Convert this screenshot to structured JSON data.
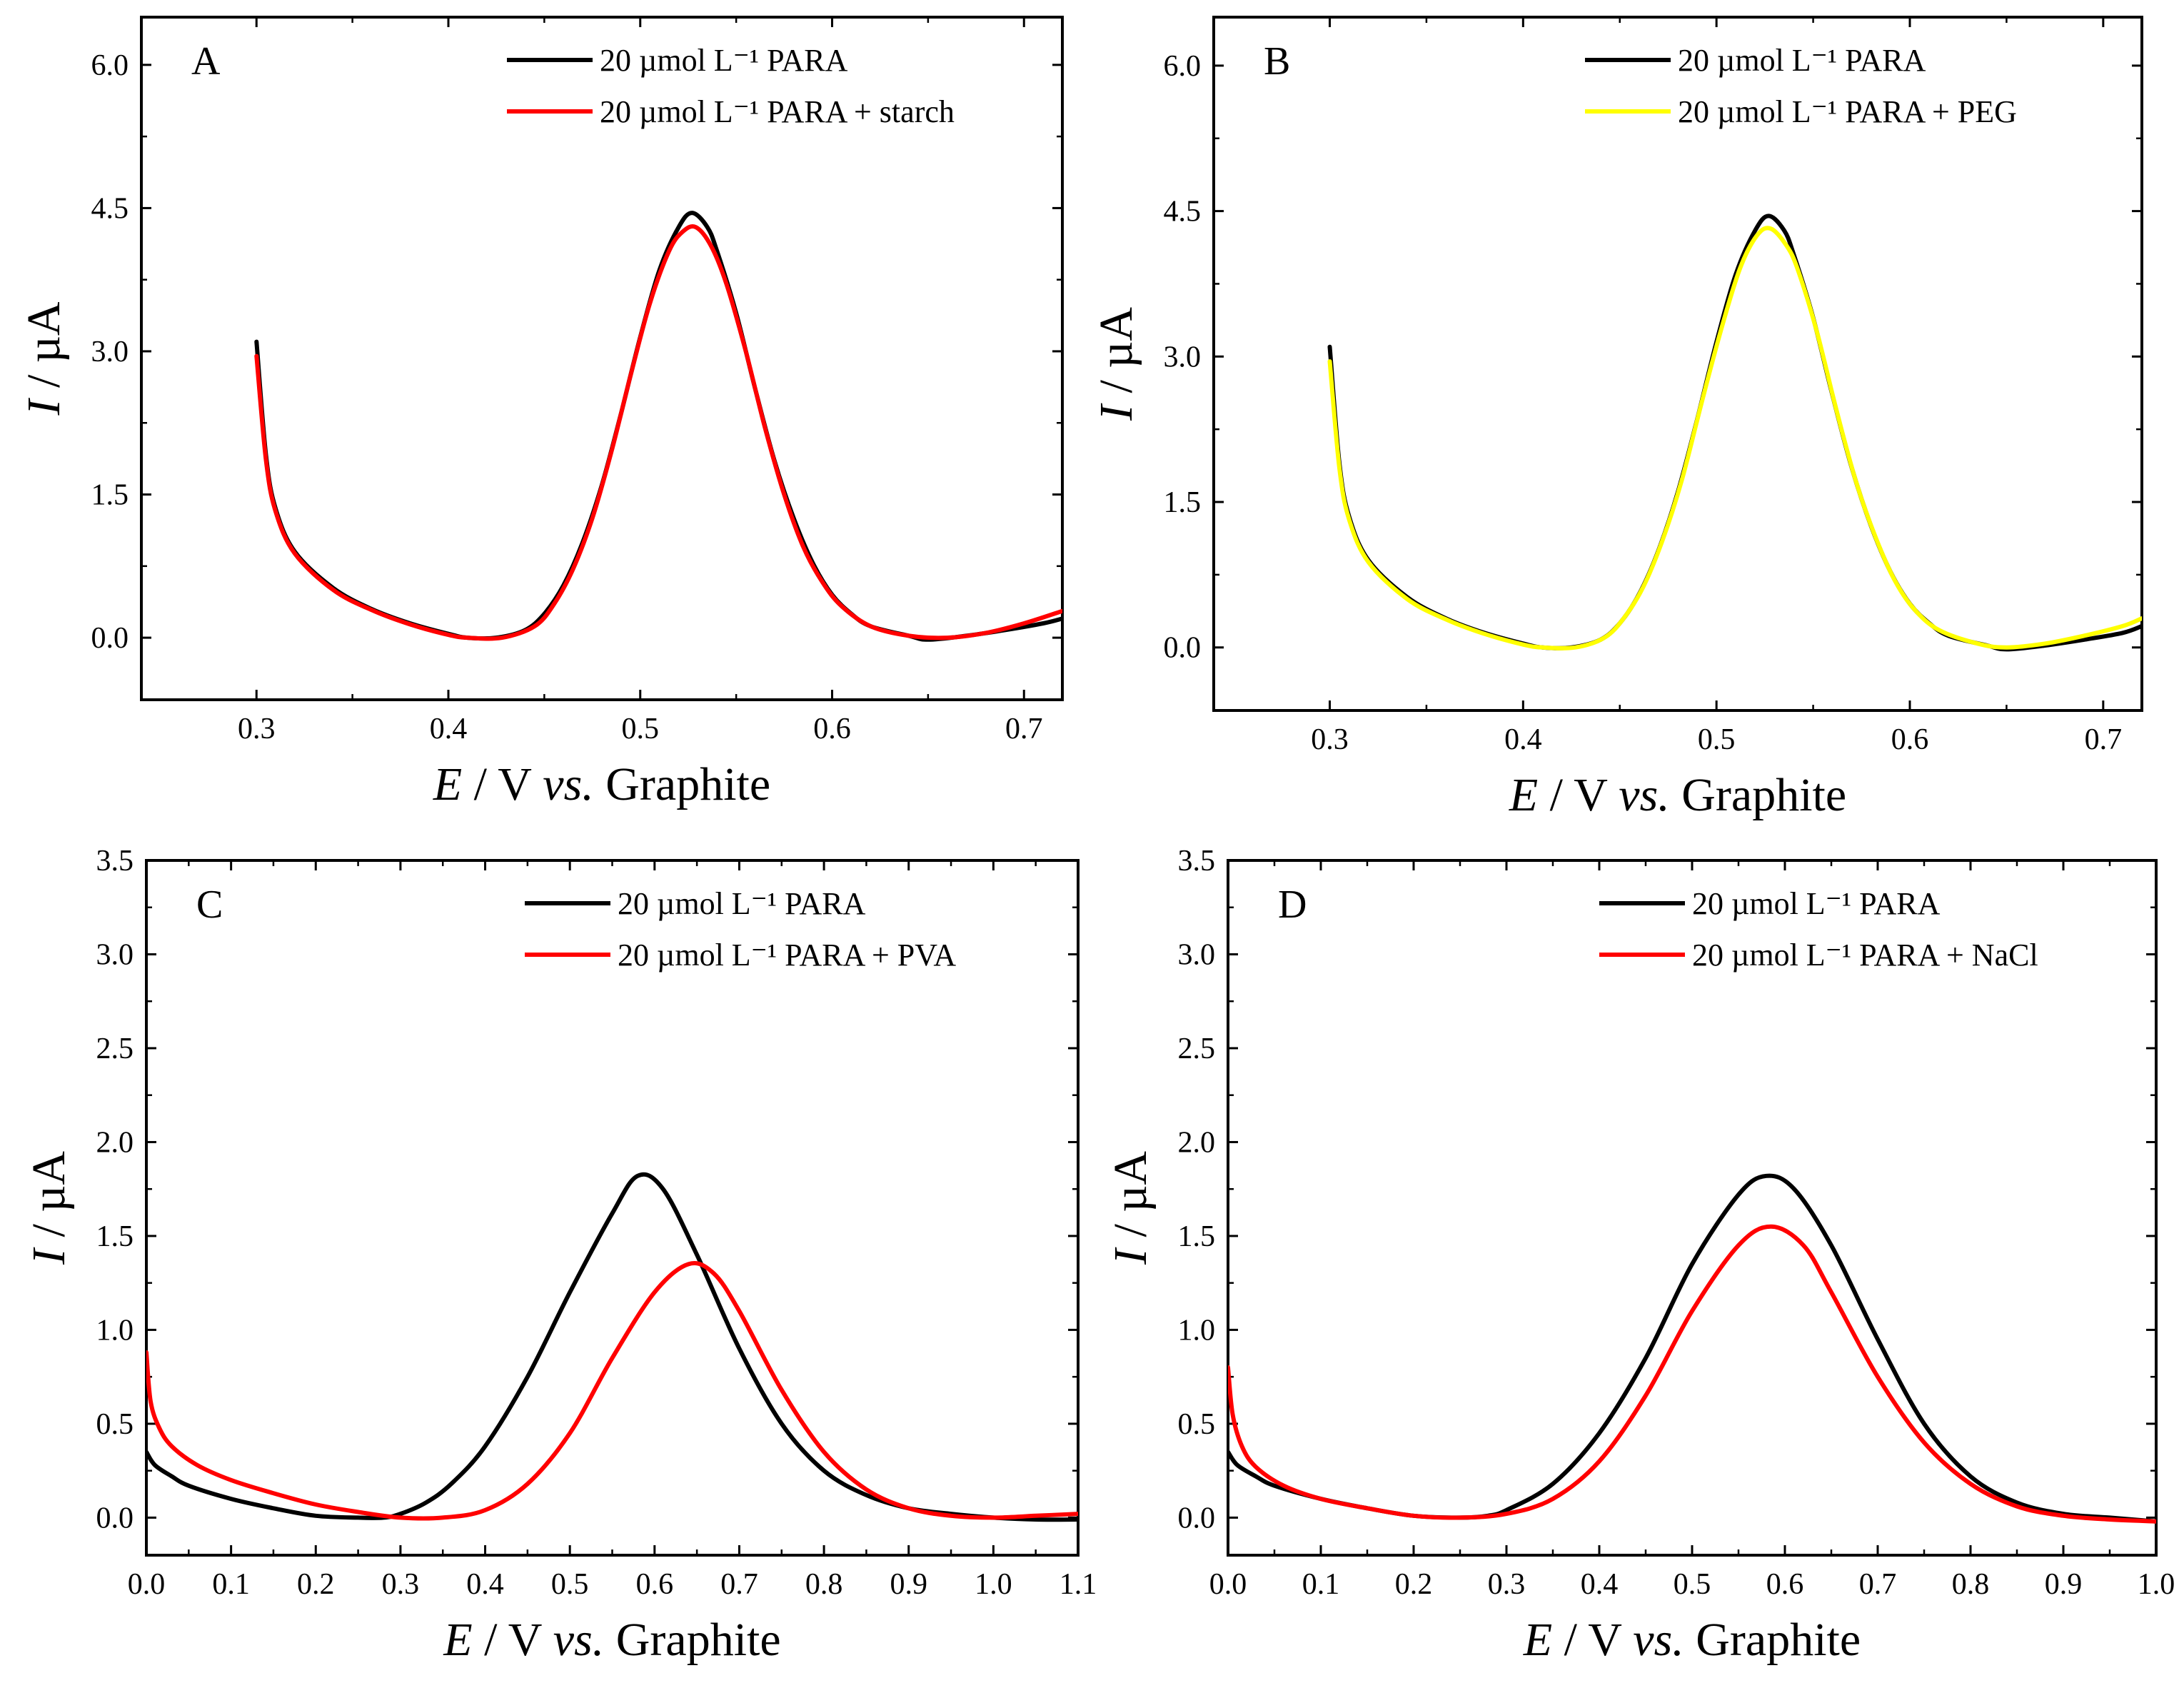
{
  "chart_data": [
    {
      "type": "line",
      "panel_label": "A",
      "xlabel": {
        "var": "E",
        "rest": " / V ",
        "ital": "vs.",
        "tail": " Graphite"
      },
      "ylabel": {
        "var": "I",
        "rest": " / µA"
      },
      "xlim": [
        0.24,
        0.72
      ],
      "ylim": [
        -0.65,
        6.5
      ],
      "xticks": [
        0.3,
        0.4,
        0.5,
        0.6,
        0.7
      ],
      "xtick_labels": [
        "0.3",
        "0.4",
        "0.5",
        "0.6",
        "0.7"
      ],
      "yticks": [
        0.0,
        1.5,
        3.0,
        4.5,
        6.0
      ],
      "ytick_labels": [
        "0.0",
        "1.5",
        "3.0",
        "4.5",
        "6.0"
      ],
      "legend_position": "top-right",
      "series": [
        {
          "name": "20 µmol L⁻¹ PARA",
          "color": "#000000",
          "x": [
            0.3,
            0.305,
            0.31,
            0.32,
            0.34,
            0.36,
            0.38,
            0.4,
            0.41,
            0.425,
            0.44,
            0.45,
            0.46,
            0.47,
            0.48,
            0.49,
            0.5,
            0.51,
            0.52,
            0.527,
            0.535,
            0.54,
            0.55,
            0.56,
            0.57,
            0.58,
            0.59,
            0.6,
            0.61,
            0.62,
            0.64,
            0.65,
            0.67,
            0.69,
            0.71,
            0.72
          ],
          "y": [
            3.1,
            1.9,
            1.35,
            0.9,
            0.52,
            0.3,
            0.15,
            0.04,
            0.0,
            0.0,
            0.08,
            0.25,
            0.55,
            1.0,
            1.6,
            2.35,
            3.15,
            3.85,
            4.3,
            4.45,
            4.3,
            4.05,
            3.4,
            2.6,
            1.85,
            1.25,
            0.78,
            0.45,
            0.25,
            0.12,
            0.02,
            -0.02,
            0.02,
            0.08,
            0.15,
            0.2
          ]
        },
        {
          "name": "20 µmol L⁻¹ PARA + starch",
          "color": "#ff0000",
          "x": [
            0.3,
            0.305,
            0.31,
            0.32,
            0.34,
            0.36,
            0.38,
            0.4,
            0.41,
            0.428,
            0.445,
            0.455,
            0.465,
            0.475,
            0.485,
            0.495,
            0.505,
            0.515,
            0.522,
            0.529,
            0.537,
            0.545,
            0.555,
            0.565,
            0.575,
            0.585,
            0.595,
            0.605,
            0.62,
            0.64,
            0.66,
            0.68,
            0.7,
            0.72
          ],
          "y": [
            2.95,
            1.85,
            1.32,
            0.88,
            0.5,
            0.29,
            0.14,
            0.03,
            0.0,
            0.0,
            0.12,
            0.35,
            0.72,
            1.25,
            1.95,
            2.75,
            3.5,
            4.05,
            4.25,
            4.3,
            4.1,
            3.7,
            3.0,
            2.2,
            1.5,
            0.95,
            0.58,
            0.33,
            0.12,
            0.02,
            0.0,
            0.05,
            0.15,
            0.28
          ]
        }
      ]
    },
    {
      "type": "line",
      "panel_label": "B",
      "xlabel": {
        "var": "E",
        "rest": " / V ",
        "ital": "vs.",
        "tail": " Graphite"
      },
      "ylabel": {
        "var": "I",
        "rest": " / µA"
      },
      "xlim": [
        0.24,
        0.72
      ],
      "ylim": [
        -0.65,
        6.5
      ],
      "xticks": [
        0.3,
        0.4,
        0.5,
        0.6,
        0.7
      ],
      "xtick_labels": [
        "0.3",
        "0.4",
        "0.5",
        "0.6",
        "0.7"
      ],
      "yticks": [
        0.0,
        1.5,
        3.0,
        4.5,
        6.0
      ],
      "ytick_labels": [
        "0.0",
        "1.5",
        "3.0",
        "4.5",
        "6.0"
      ],
      "legend_position": "top-right",
      "series": [
        {
          "name": "20 µmol L⁻¹ PARA",
          "color": "#000000",
          "x": [
            0.3,
            0.305,
            0.31,
            0.32,
            0.34,
            0.36,
            0.38,
            0.4,
            0.41,
            0.425,
            0.44,
            0.45,
            0.46,
            0.47,
            0.48,
            0.49,
            0.5,
            0.51,
            0.52,
            0.527,
            0.535,
            0.54,
            0.55,
            0.56,
            0.57,
            0.58,
            0.59,
            0.6,
            0.61,
            0.62,
            0.64,
            0.65,
            0.67,
            0.69,
            0.71,
            0.72
          ],
          "y": [
            3.1,
            1.9,
            1.35,
            0.9,
            0.52,
            0.3,
            0.15,
            0.04,
            0.0,
            0.0,
            0.08,
            0.25,
            0.55,
            1.0,
            1.6,
            2.35,
            3.15,
            3.85,
            4.3,
            4.45,
            4.3,
            4.05,
            3.4,
            2.6,
            1.85,
            1.25,
            0.78,
            0.45,
            0.25,
            0.12,
            0.02,
            -0.02,
            0.02,
            0.08,
            0.15,
            0.22
          ]
        },
        {
          "name": "20 µmol L⁻¹ PARA + PEG",
          "color": "#ffff00",
          "x": [
            0.3,
            0.305,
            0.31,
            0.32,
            0.34,
            0.36,
            0.38,
            0.4,
            0.41,
            0.427,
            0.442,
            0.452,
            0.462,
            0.472,
            0.482,
            0.492,
            0.502,
            0.512,
            0.521,
            0.528,
            0.536,
            0.542,
            0.552,
            0.562,
            0.572,
            0.582,
            0.592,
            0.602,
            0.615,
            0.635,
            0.65,
            0.67,
            0.69,
            0.71,
            0.72
          ],
          "y": [
            2.95,
            1.85,
            1.32,
            0.88,
            0.5,
            0.29,
            0.14,
            0.03,
            0.0,
            0.0,
            0.1,
            0.3,
            0.62,
            1.1,
            1.72,
            2.5,
            3.25,
            3.9,
            4.25,
            4.32,
            4.15,
            3.9,
            3.25,
            2.45,
            1.72,
            1.15,
            0.7,
            0.4,
            0.18,
            0.04,
            0.0,
            0.04,
            0.12,
            0.22,
            0.3
          ]
        }
      ]
    },
    {
      "type": "line",
      "panel_label": "C",
      "xlabel": {
        "var": "E",
        "rest": " / V ",
        "ital": "vs.",
        "tail": " Graphite"
      },
      "ylabel": {
        "var": "I",
        "rest": " / µA"
      },
      "xlim": [
        0.0,
        1.1
      ],
      "ylim": [
        -0.2,
        3.5
      ],
      "xticks": [
        0.0,
        0.1,
        0.2,
        0.3,
        0.4,
        0.5,
        0.6,
        0.7,
        0.8,
        0.9,
        1.0,
        1.1
      ],
      "xtick_labels": [
        "0.0",
        "0.1",
        "0.2",
        "0.3",
        "0.4",
        "0.5",
        "0.6",
        "0.7",
        "0.8",
        "0.9",
        "1.0",
        "1.1"
      ],
      "yticks": [
        0.0,
        0.5,
        1.0,
        1.5,
        2.0,
        2.5,
        3.0,
        3.5
      ],
      "ytick_labels": [
        "0.0",
        "0.5",
        "1.0",
        "1.5",
        "2.0",
        "2.5",
        "3.0",
        "3.5"
      ],
      "legend_position": "top-right",
      "series": [
        {
          "name": "20 µmol L⁻¹ PARA",
          "color": "#000000",
          "x": [
            0.0,
            0.01,
            0.03,
            0.05,
            0.1,
            0.15,
            0.2,
            0.25,
            0.28,
            0.3,
            0.33,
            0.36,
            0.4,
            0.45,
            0.5,
            0.55,
            0.58,
            0.61,
            0.65,
            0.7,
            0.75,
            0.8,
            0.85,
            0.9,
            0.95,
            1.0,
            1.05,
            1.1
          ],
          "y": [
            0.35,
            0.28,
            0.22,
            0.17,
            0.1,
            0.05,
            0.01,
            0.0,
            0.0,
            0.02,
            0.08,
            0.18,
            0.38,
            0.75,
            1.2,
            1.62,
            1.82,
            1.75,
            1.4,
            0.9,
            0.5,
            0.25,
            0.12,
            0.05,
            0.02,
            0.0,
            -0.01,
            -0.01
          ]
        },
        {
          "name": "20 µmol L⁻¹ PARA + PVA",
          "color": "#ff0000",
          "x": [
            0.0,
            0.005,
            0.015,
            0.03,
            0.06,
            0.1,
            0.15,
            0.2,
            0.25,
            0.3,
            0.35,
            0.4,
            0.45,
            0.5,
            0.55,
            0.6,
            0.64,
            0.67,
            0.7,
            0.75,
            0.8,
            0.85,
            0.9,
            0.95,
            1.0,
            1.05,
            1.1
          ],
          "y": [
            0.88,
            0.62,
            0.48,
            0.38,
            0.28,
            0.2,
            0.13,
            0.07,
            0.03,
            0.0,
            0.0,
            0.04,
            0.18,
            0.45,
            0.85,
            1.2,
            1.35,
            1.3,
            1.1,
            0.68,
            0.35,
            0.15,
            0.05,
            0.01,
            0.0,
            0.01,
            0.02
          ]
        }
      ]
    },
    {
      "type": "line",
      "panel_label": "D",
      "xlabel": {
        "var": "E",
        "rest": " / V ",
        "ital": "vs.",
        "tail": " Graphite"
      },
      "ylabel": {
        "var": "I",
        "rest": " / µA"
      },
      "xlim": [
        0.0,
        1.0
      ],
      "ylim": [
        -0.2,
        3.5
      ],
      "xticks": [
        0.0,
        0.1,
        0.2,
        0.3,
        0.4,
        0.5,
        0.6,
        0.7,
        0.8,
        0.9,
        1.0
      ],
      "xtick_labels": [
        "0.0",
        "0.1",
        "0.2",
        "0.3",
        "0.4",
        "0.5",
        "0.6",
        "0.7",
        "0.8",
        "0.9",
        "1.0"
      ],
      "yticks": [
        0.0,
        0.5,
        1.0,
        1.5,
        2.0,
        2.5,
        3.0,
        3.5
      ],
      "ytick_labels": [
        "0.0",
        "0.5",
        "1.0",
        "1.5",
        "2.0",
        "2.5",
        "3.0",
        "3.5"
      ],
      "legend_position": "top-right",
      "series": [
        {
          "name": "20 µmol L⁻¹ PARA",
          "color": "#000000",
          "x": [
            0.0,
            0.01,
            0.03,
            0.05,
            0.1,
            0.15,
            0.2,
            0.25,
            0.28,
            0.3,
            0.35,
            0.4,
            0.45,
            0.5,
            0.55,
            0.58,
            0.61,
            0.65,
            0.7,
            0.75,
            0.8,
            0.85,
            0.9,
            0.95,
            1.0
          ],
          "y": [
            0.35,
            0.28,
            0.22,
            0.17,
            0.1,
            0.05,
            0.01,
            0.0,
            0.01,
            0.04,
            0.18,
            0.45,
            0.85,
            1.35,
            1.72,
            1.82,
            1.75,
            1.45,
            0.95,
            0.5,
            0.22,
            0.08,
            0.02,
            0.0,
            -0.02
          ]
        },
        {
          "name": "20 µmol L⁻¹ PARA + NaCl",
          "color": "#ff0000",
          "x": [
            0.0,
            0.005,
            0.015,
            0.03,
            0.06,
            0.1,
            0.15,
            0.2,
            0.25,
            0.3,
            0.35,
            0.4,
            0.45,
            0.5,
            0.55,
            0.585,
            0.62,
            0.65,
            0.7,
            0.75,
            0.8,
            0.85,
            0.9,
            0.95,
            1.0
          ],
          "y": [
            0.8,
            0.55,
            0.38,
            0.27,
            0.17,
            0.1,
            0.05,
            0.01,
            0.0,
            0.02,
            0.1,
            0.3,
            0.65,
            1.1,
            1.45,
            1.55,
            1.45,
            1.2,
            0.75,
            0.4,
            0.18,
            0.06,
            0.01,
            -0.01,
            -0.02
          ]
        }
      ]
    }
  ]
}
